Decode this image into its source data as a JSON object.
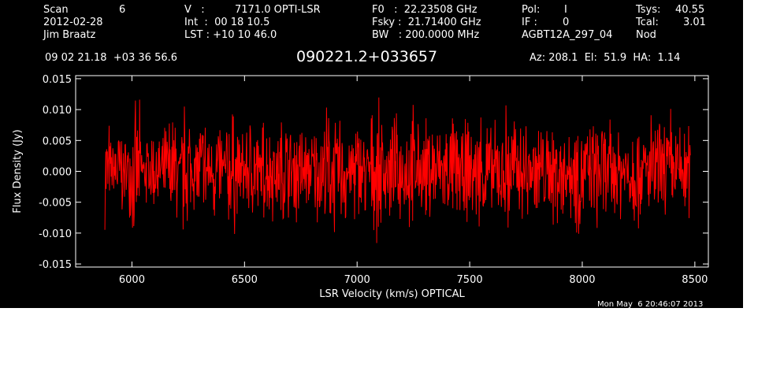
{
  "header": {
    "scan_label": "Scan",
    "scan_value": "6",
    "date": "2012-02-28",
    "observer": "Jim Braatz",
    "v_label": "V   :",
    "v_value": "7171.0 OPTI-LSR",
    "int_line": "Int  :  00 18 10.5",
    "lst_line": "LST : +10 10 46.0",
    "f0_line": "F0   :  22.23508 GHz",
    "fsky_line": "Fsky :  21.71400 GHz",
    "bw_line": "BW   : 200.0000 MHz",
    "pol_label": "Pol:",
    "pol_value": "I",
    "if_label": "IF :",
    "if_value": "0",
    "project": "AGBT12A_297_04",
    "tsys_label": "Tsys:",
    "tsys_value": "40.55",
    "tcal_label": "Tcal:",
    "tcal_value": "3.01",
    "mode": "Nod",
    "coords": "09 02 21.18  +03 36 56.6",
    "source": "090221.2+033657",
    "az_el_ha": "Az: 208.1  El:  51.9  HA:  1.14",
    "timestamp": "Mon May  6 20:46:07 2013"
  },
  "colors": {
    "background": "#000000",
    "axes": "#ffffff",
    "trace": "#ff0000"
  },
  "chart_data": {
    "type": "line",
    "xlabel": "LSR Velocity (km/s) OPTICAL",
    "ylabel": "Flux Density (Jy)",
    "xlim": [
      5750,
      8560
    ],
    "ylim": [
      -0.0155,
      0.0155
    ],
    "x_ticks": [
      6000,
      6500,
      7000,
      7500,
      8000,
      8500
    ],
    "y_ticks": [
      -0.015,
      -0.01,
      -0.005,
      0.0,
      0.005,
      0.01,
      0.015
    ],
    "x_tick_labels": [
      "6000",
      "6500",
      "7000",
      "7500",
      "8000",
      "8500"
    ],
    "y_tick_labels": [
      "-0.015",
      "-0.010",
      "-0.005",
      "0.000",
      "0.005",
      "0.010",
      "0.015"
    ],
    "series": [
      {
        "values_description_free": true,
        "x_start": 5880,
        "x_end": 8480,
        "x": [
          5880,
          5900,
          5920,
          5940,
          5960,
          5980,
          6000,
          6020,
          6040,
          6060,
          6080,
          6100,
          6120,
          6140,
          6160,
          6180,
          6200,
          6220,
          6240,
          6260,
          6280,
          6300,
          6320,
          6340,
          6360,
          6380,
          6400,
          6420,
          6440,
          6460,
          6480,
          6500,
          6520,
          6540,
          6560,
          6580,
          6600,
          6620,
          6640,
          6660,
          6680,
          6700,
          6720,
          6740,
          6760,
          6780,
          6800,
          6820,
          6840,
          6860,
          6880,
          6900,
          6920,
          6940,
          6960,
          6980,
          7000,
          7020,
          7040,
          7060,
          7080,
          7100,
          7120,
          7140,
          7160,
          7180,
          7200,
          7220,
          7240,
          7260,
          7280,
          7300,
          7320,
          7340,
          7360,
          7380,
          7400,
          7420,
          7440,
          7460,
          7480,
          7500,
          7520,
          7540,
          7560,
          7580,
          7600,
          7620,
          7640,
          7660,
          7680,
          7700,
          7720,
          7740,
          7760,
          7780,
          7800,
          7820,
          7840,
          7860,
          7880,
          7900,
          7920,
          7940,
          7960,
          7980,
          8000,
          8020,
          8040,
          8060,
          8080,
          8100,
          8120,
          8140,
          8160,
          8180,
          8200,
          8220,
          8240,
          8260,
          8280,
          8300,
          8320,
          8340,
          8360,
          8380,
          8400,
          8420,
          8440,
          8460,
          8480
        ],
        "y": [
          0.01,
          -0.006,
          0.004,
          -0.009,
          0.006,
          -0.003,
          0.008,
          -0.012,
          0.005,
          -0.004,
          0.007,
          -0.008,
          0.003,
          -0.006,
          0.009,
          -0.011,
          0.004,
          -0.005,
          0.013,
          -0.007,
          0.006,
          -0.009,
          0.011,
          -0.004,
          0.007,
          -0.01,
          0.005,
          -0.006,
          0.012,
          -0.008,
          0.004,
          -0.007,
          0.009,
          -0.011,
          0.006,
          -0.005,
          0.01,
          -0.009,
          0.007,
          -0.006,
          0.011,
          -0.008,
          0.005,
          -0.01,
          0.008,
          -0.007,
          0.006,
          -0.009,
          0.01,
          -0.008,
          0.012,
          -0.006,
          0.009,
          -0.011,
          0.007,
          -0.005,
          0.01,
          -0.009,
          0.006,
          -0.007,
          0.011,
          -0.012,
          0.008,
          -0.006,
          0.009,
          -0.01,
          0.007,
          -0.008,
          0.012,
          -0.009,
          0.006,
          -0.007,
          0.01,
          -0.011,
          0.008,
          -0.006,
          0.009,
          -0.008,
          0.011,
          -0.007,
          0.006,
          -0.01,
          0.009,
          -0.008,
          0.012,
          -0.006,
          0.008,
          -0.009,
          0.01,
          -0.007,
          0.013,
          -0.008,
          0.009,
          -0.011,
          0.007,
          -0.006,
          0.01,
          -0.009,
          0.008,
          -0.007,
          0.011,
          -0.01,
          0.006,
          -0.008,
          0.009,
          -0.012,
          0.01,
          -0.007,
          0.008,
          -0.009,
          0.011,
          -0.006,
          0.007,
          -0.01,
          0.009,
          -0.008,
          0.006,
          -0.011,
          0.01,
          -0.007,
          0.008,
          -0.009,
          0.011,
          -0.006,
          0.009,
          -0.012,
          0.007,
          -0.008,
          0.01,
          -0.009,
          0.006
        ]
      }
    ]
  }
}
